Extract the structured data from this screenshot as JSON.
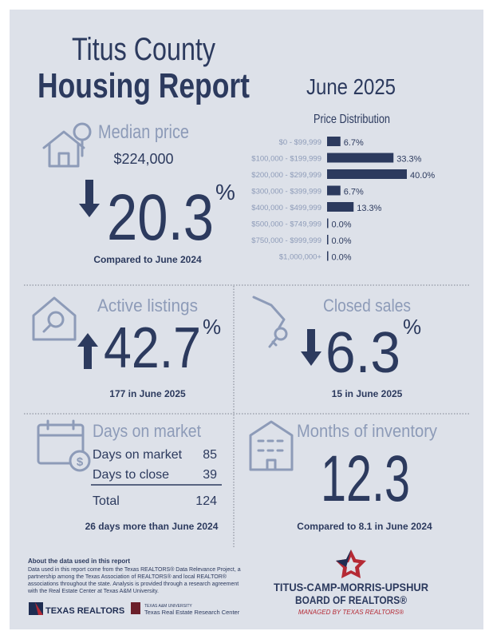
{
  "header": {
    "title_line1": "Titus County",
    "title_line2": "Housing Report",
    "date": "June 2025"
  },
  "median_price": {
    "label": "Median price",
    "price": "$224,000",
    "change": "20.3",
    "unit": "%",
    "comparison": "Compared to June 2024"
  },
  "price_distribution": {
    "title": "Price Distribution",
    "categories": [
      "$0 - $99,999",
      "$100,000 - $199,999",
      "$200,000 - $299,999",
      "$300,000 - $399,999",
      "$400,000 - $499,999",
      "$500,000 - $749,999",
      "$750,000 - $999,999",
      "$1,000,000+"
    ],
    "values": [
      6.7,
      33.3,
      40.0,
      6.7,
      13.3,
      0,
      0,
      0
    ],
    "value_labels": [
      "6.7%",
      "33.3%",
      "40.0%",
      "6.7%",
      "13.3%",
      "0.0%",
      "0.0%",
      "0.0%"
    ],
    "color": "#2c3a5e"
  },
  "active_listings": {
    "label": "Active listings",
    "change": "42.7",
    "unit": "%",
    "note": "177 in June 2025"
  },
  "closed_sales": {
    "label": "Closed sales",
    "change": "6.3",
    "unit": "%",
    "note": "15 in June 2025"
  },
  "days_on_market": {
    "label": "Days on market",
    "rows": [
      [
        "Days on market",
        85
      ],
      [
        "Days to close",
        39
      ]
    ],
    "total": [
      "Total",
      124
    ],
    "note": "26 days more than June 2024"
  },
  "months_of_inventory": {
    "label": "Months of inventory",
    "value": "12.3",
    "note": "Compared to 8.1 in June 2024"
  },
  "footer": {
    "about_title": "About the data used in this report",
    "about_text": [
      "Data used in this report come from the Texas REALTORS® Data Relevance Project, a",
      "partnership among the Texas Association of REALTORS® and local REALTOR®",
      "associations throughout the state. Analysis is provided through a research agreement",
      "with the Real Estate Center at Texas A&M University."
    ],
    "logo1": "TEXAS REALTORS",
    "logo2_small": "TEXAS A&M UNIVERSITY",
    "logo2": "Texas Real Estate Research Center",
    "board_line1": "TITUS-CAMP-MORRIS-UPSHUR",
    "board_line2": "BOARD OF REALTORS®",
    "board_tagline": "MANAGED BY TEXAS REALTORS®"
  }
}
